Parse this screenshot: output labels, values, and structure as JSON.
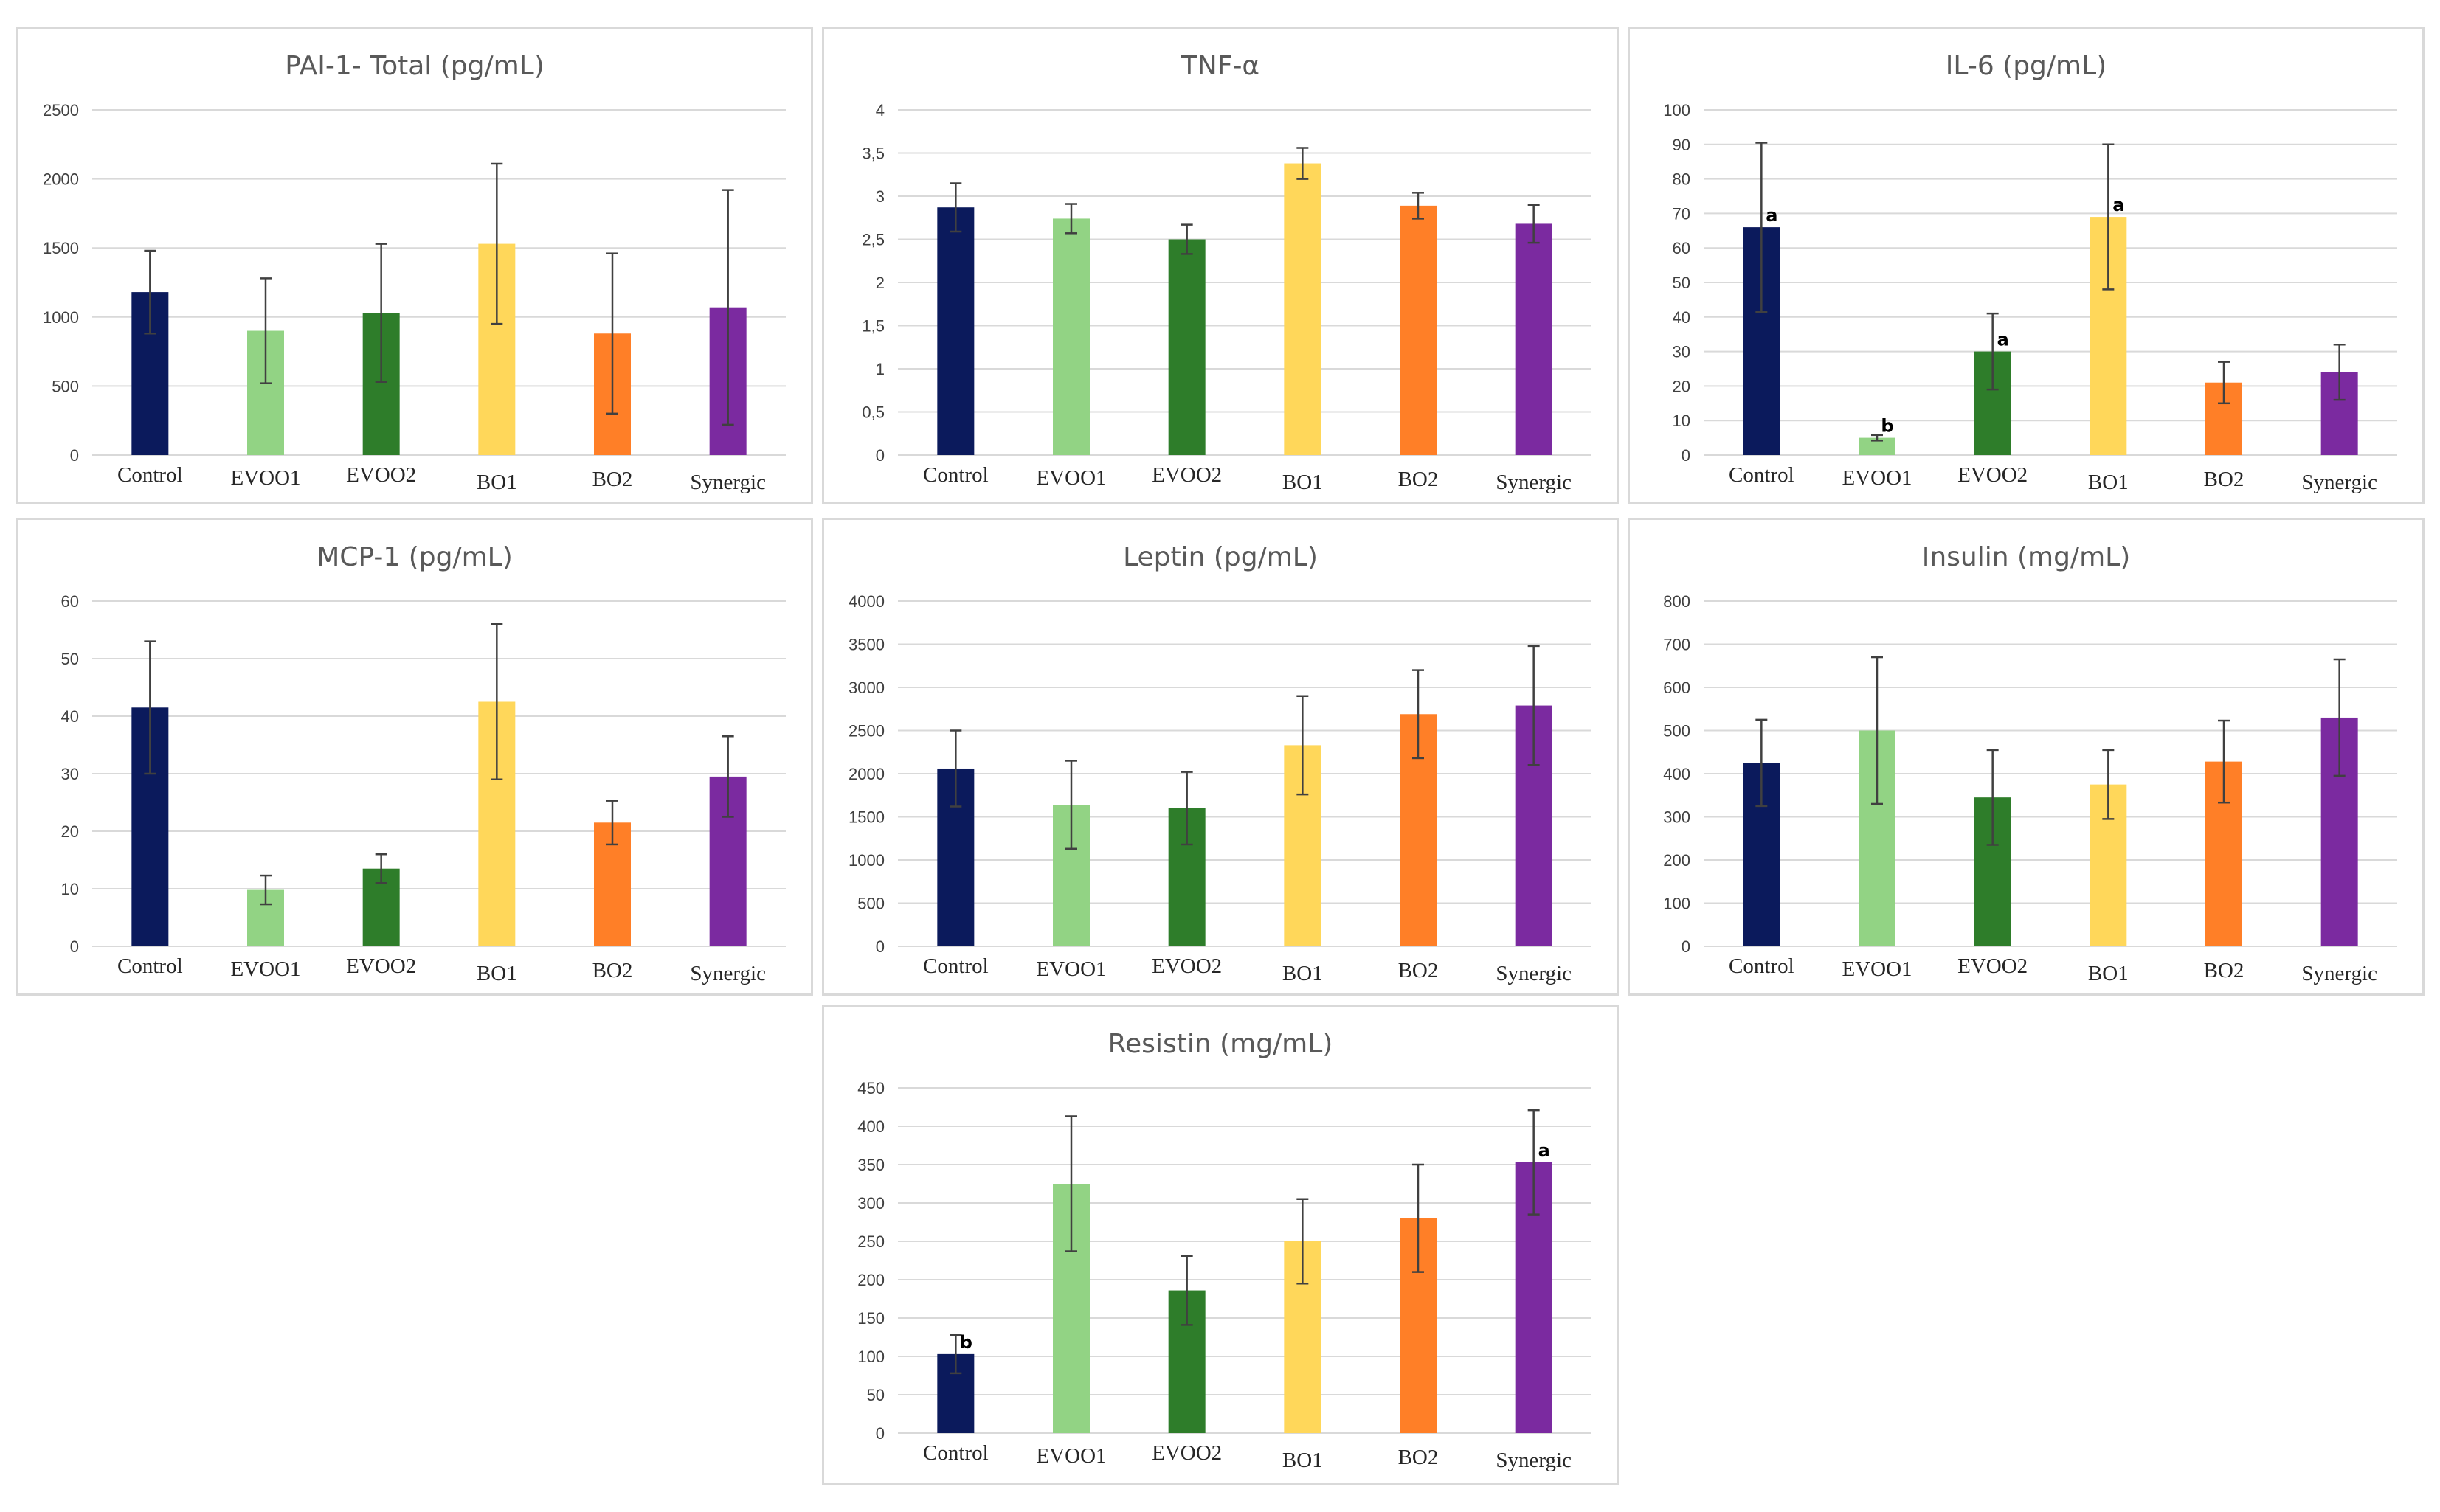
{
  "figure": {
    "categories": [
      "Control",
      "EVOO1",
      "EVOO2",
      "BO1",
      "BO2",
      "Synergic"
    ],
    "colors": {
      "Control": "#0b1a5c",
      "EVOO1": "#92d384",
      "EVOO2": "#2e7d2a",
      "BO1": "#ffd75a",
      "BO2": "#ff7f27",
      "Synergic": "#7b2aa0"
    }
  },
  "chart_data": [
    {
      "type": "bar",
      "title": "PAI-1- Total (pg/mL)",
      "ylim": [
        0,
        2500
      ],
      "yticks": [
        0,
        500,
        1000,
        1500,
        2000,
        2500
      ],
      "ytick_labels": [
        "0",
        "500",
        "1000",
        "1500",
        "2000",
        "2500"
      ],
      "categories": [
        "Control",
        "EVOO1",
        "EVOO2",
        "BO1",
        "BO2",
        "Synergic"
      ],
      "values": [
        1180,
        900,
        1030,
        1530,
        880,
        1070
      ],
      "errors": [
        300,
        380,
        500,
        580,
        580,
        850
      ],
      "significance": [
        "",
        "",
        "",
        "",
        "",
        ""
      ]
    },
    {
      "type": "bar",
      "title": "TNF-α",
      "ylim": [
        0,
        4
      ],
      "yticks": [
        0,
        0.5,
        1,
        1.5,
        2,
        2.5,
        3,
        3.5,
        4
      ],
      "ytick_labels": [
        "0",
        "0,5",
        "1",
        "1,5",
        "2",
        "2,5",
        "3",
        "3,5",
        "4"
      ],
      "categories": [
        "Control",
        "EVOO1",
        "EVOO2",
        "BO1",
        "BO2",
        "Synergic"
      ],
      "values": [
        2.87,
        2.74,
        2.5,
        3.38,
        2.89,
        2.68
      ],
      "errors": [
        0.28,
        0.17,
        0.17,
        0.18,
        0.15,
        0.22
      ],
      "significance": [
        "",
        "",
        "",
        "",
        "",
        ""
      ]
    },
    {
      "type": "bar",
      "title": "IL-6 (pg/mL)",
      "ylim": [
        0,
        100
      ],
      "yticks": [
        0,
        10,
        20,
        30,
        40,
        50,
        60,
        70,
        80,
        90,
        100
      ],
      "ytick_labels": [
        "0",
        "10",
        "20",
        "30",
        "40",
        "50",
        "60",
        "70",
        "80",
        "90",
        "100"
      ],
      "categories": [
        "Control",
        "EVOO1",
        "EVOO2",
        "BO1",
        "BO2",
        "Synergic"
      ],
      "values": [
        66,
        5,
        30,
        69,
        21,
        24
      ],
      "errors": [
        24.5,
        0.8,
        11,
        21,
        6,
        8
      ],
      "significance": [
        "a",
        "b",
        "a",
        "a",
        "",
        ""
      ]
    },
    {
      "type": "bar",
      "title": "MCP-1 (pg/mL)",
      "ylim": [
        0,
        60
      ],
      "yticks": [
        0,
        10,
        20,
        30,
        40,
        50,
        60
      ],
      "ytick_labels": [
        "0",
        "10",
        "20",
        "30",
        "40",
        "50",
        "60"
      ],
      "categories": [
        "Control",
        "EVOO1",
        "EVOO2",
        "BO1",
        "BO2",
        "Synergic"
      ],
      "values": [
        41.5,
        9.8,
        13.5,
        42.5,
        21.5,
        29.5
      ],
      "errors": [
        11.5,
        2.5,
        2.5,
        13.5,
        3.8,
        7
      ],
      "significance": [
        "",
        "",
        "",
        "",
        "",
        ""
      ]
    },
    {
      "type": "bar",
      "title": "Leptin   (pg/mL)",
      "ylim": [
        0,
        4000
      ],
      "yticks": [
        0,
        500,
        1000,
        1500,
        2000,
        2500,
        3000,
        3500,
        4000
      ],
      "ytick_labels": [
        "0",
        "500",
        "1000",
        "1500",
        "2000",
        "2500",
        "3000",
        "3500",
        "4000"
      ],
      "categories": [
        "Control",
        "EVOO1",
        "EVOO2",
        "BO1",
        "BO2",
        "Synergic"
      ],
      "values": [
        2060,
        1640,
        1600,
        2330,
        2690,
        2790
      ],
      "errors": [
        440,
        510,
        420,
        570,
        510,
        690
      ],
      "significance": [
        "",
        "",
        "",
        "",
        "",
        ""
      ]
    },
    {
      "type": "bar",
      "title": "Insulin   (mg/mL)",
      "ylim": [
        0,
        800
      ],
      "yticks": [
        0,
        100,
        200,
        300,
        400,
        500,
        600,
        700,
        800
      ],
      "ytick_labels": [
        "0",
        "100",
        "200",
        "300",
        "400",
        "500",
        "600",
        "700",
        "800"
      ],
      "categories": [
        "Control",
        "EVOO1",
        "EVOO2",
        "BO1",
        "BO2",
        "Synergic"
      ],
      "values": [
        425,
        500,
        345,
        375,
        428,
        530
      ],
      "errors": [
        100,
        170,
        110,
        80,
        95,
        135
      ],
      "significance": [
        "",
        "",
        "",
        "",
        "",
        ""
      ]
    },
    {
      "type": "bar",
      "title": "Resistin   (mg/mL)",
      "ylim": [
        0,
        450
      ],
      "yticks": [
        0,
        50,
        100,
        150,
        200,
        250,
        300,
        350,
        400,
        450
      ],
      "ytick_labels": [
        "0",
        "50",
        "100",
        "150",
        "200",
        "250",
        "300",
        "350",
        "400",
        "450"
      ],
      "categories": [
        "Control",
        "EVOO1",
        "EVOO2",
        "BO1",
        "BO2",
        "Synergic"
      ],
      "values": [
        103,
        325,
        186,
        250,
        280,
        353
      ],
      "errors": [
        25,
        88,
        45,
        55,
        70,
        68
      ],
      "significance": [
        "b",
        "",
        "",
        "",
        "",
        "a"
      ]
    }
  ]
}
